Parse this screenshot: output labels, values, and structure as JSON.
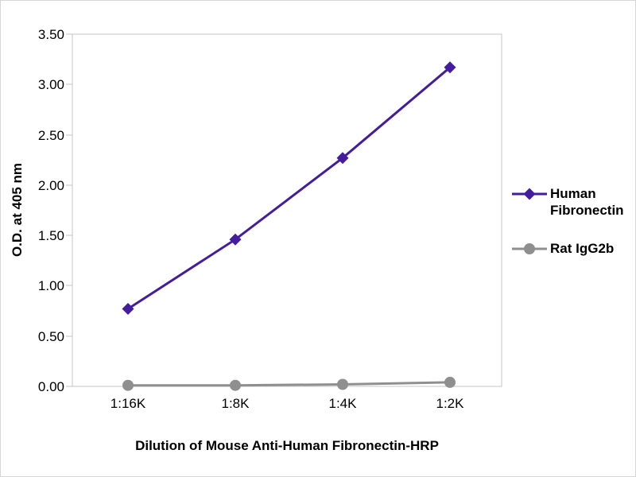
{
  "chart_data": {
    "type": "line",
    "title": "",
    "xlabel": "Dilution of Mouse Anti-Human Fibronectin-HRP",
    "ylabel": "O.D. at 405 nm",
    "categories": [
      "1:16K",
      "1:8K",
      "1:4K",
      "1:2K"
    ],
    "yticks": [
      "3.50",
      "3.00",
      "2.50",
      "2.00",
      "1.50",
      "1.00",
      "0.50",
      "0.00"
    ],
    "ylim": [
      0,
      3.5
    ],
    "grid": false,
    "legend_position": "right",
    "series": [
      {
        "name": "Human Fibronectin",
        "color": "#431d9e",
        "marker": "diamond",
        "values": [
          0.77,
          1.46,
          2.27,
          3.17
        ]
      },
      {
        "name": "Rat IgG2b",
        "color": "#8f8f8f",
        "marker": "circle",
        "values": [
          0.01,
          0.01,
          0.02,
          0.04
        ]
      }
    ]
  },
  "colors": {
    "axis": "#c4c4c4",
    "text": "#000000",
    "background": "#ffffff"
  }
}
